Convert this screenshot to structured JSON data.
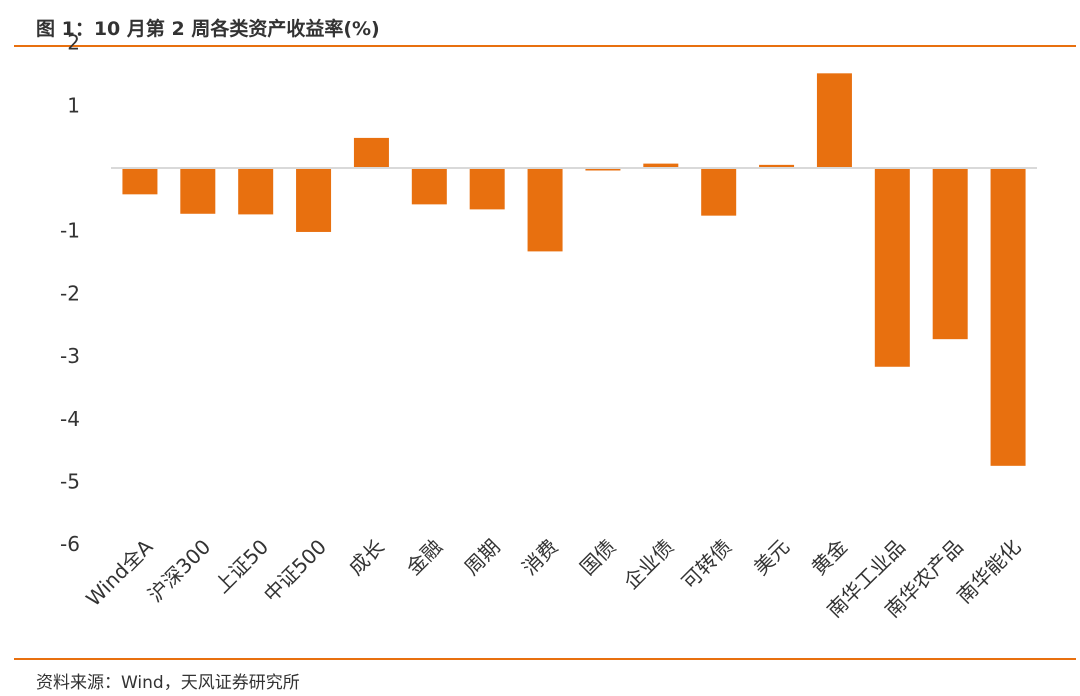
{
  "header": {
    "title": "图 1：10 月第 2 周各类资产收益率(%)"
  },
  "footer": {
    "source": "资料来源：Wind，天风证券研究所"
  },
  "colors": {
    "accent": "#E8700F",
    "bar": "#E8700F",
    "axis": "#D9D9D9"
  },
  "chart_data": {
    "type": "bar",
    "title": "图 1：10 月第 2 周各类资产收益率(%)",
    "xlabel": "",
    "ylabel": "",
    "categories": [
      "Wind全A",
      "沪深300",
      "上证50",
      "中证500",
      "成长",
      "金融",
      "周期",
      "消费",
      "国债",
      "企业债",
      "可转债",
      "美元",
      "黄金",
      "南华工业品",
      "南华农产品",
      "南华能化"
    ],
    "values": [
      -0.42,
      -0.73,
      -0.74,
      -1.02,
      0.48,
      -0.58,
      -0.66,
      -1.33,
      -0.04,
      0.07,
      -0.76,
      0.05,
      1.51,
      -3.17,
      -2.73,
      -4.75
    ],
    "ylim": [
      -6,
      2
    ],
    "yticks": [
      2,
      1,
      -1,
      -2,
      -3,
      -4,
      -5,
      -6
    ],
    "grid": false,
    "legend": "none"
  }
}
